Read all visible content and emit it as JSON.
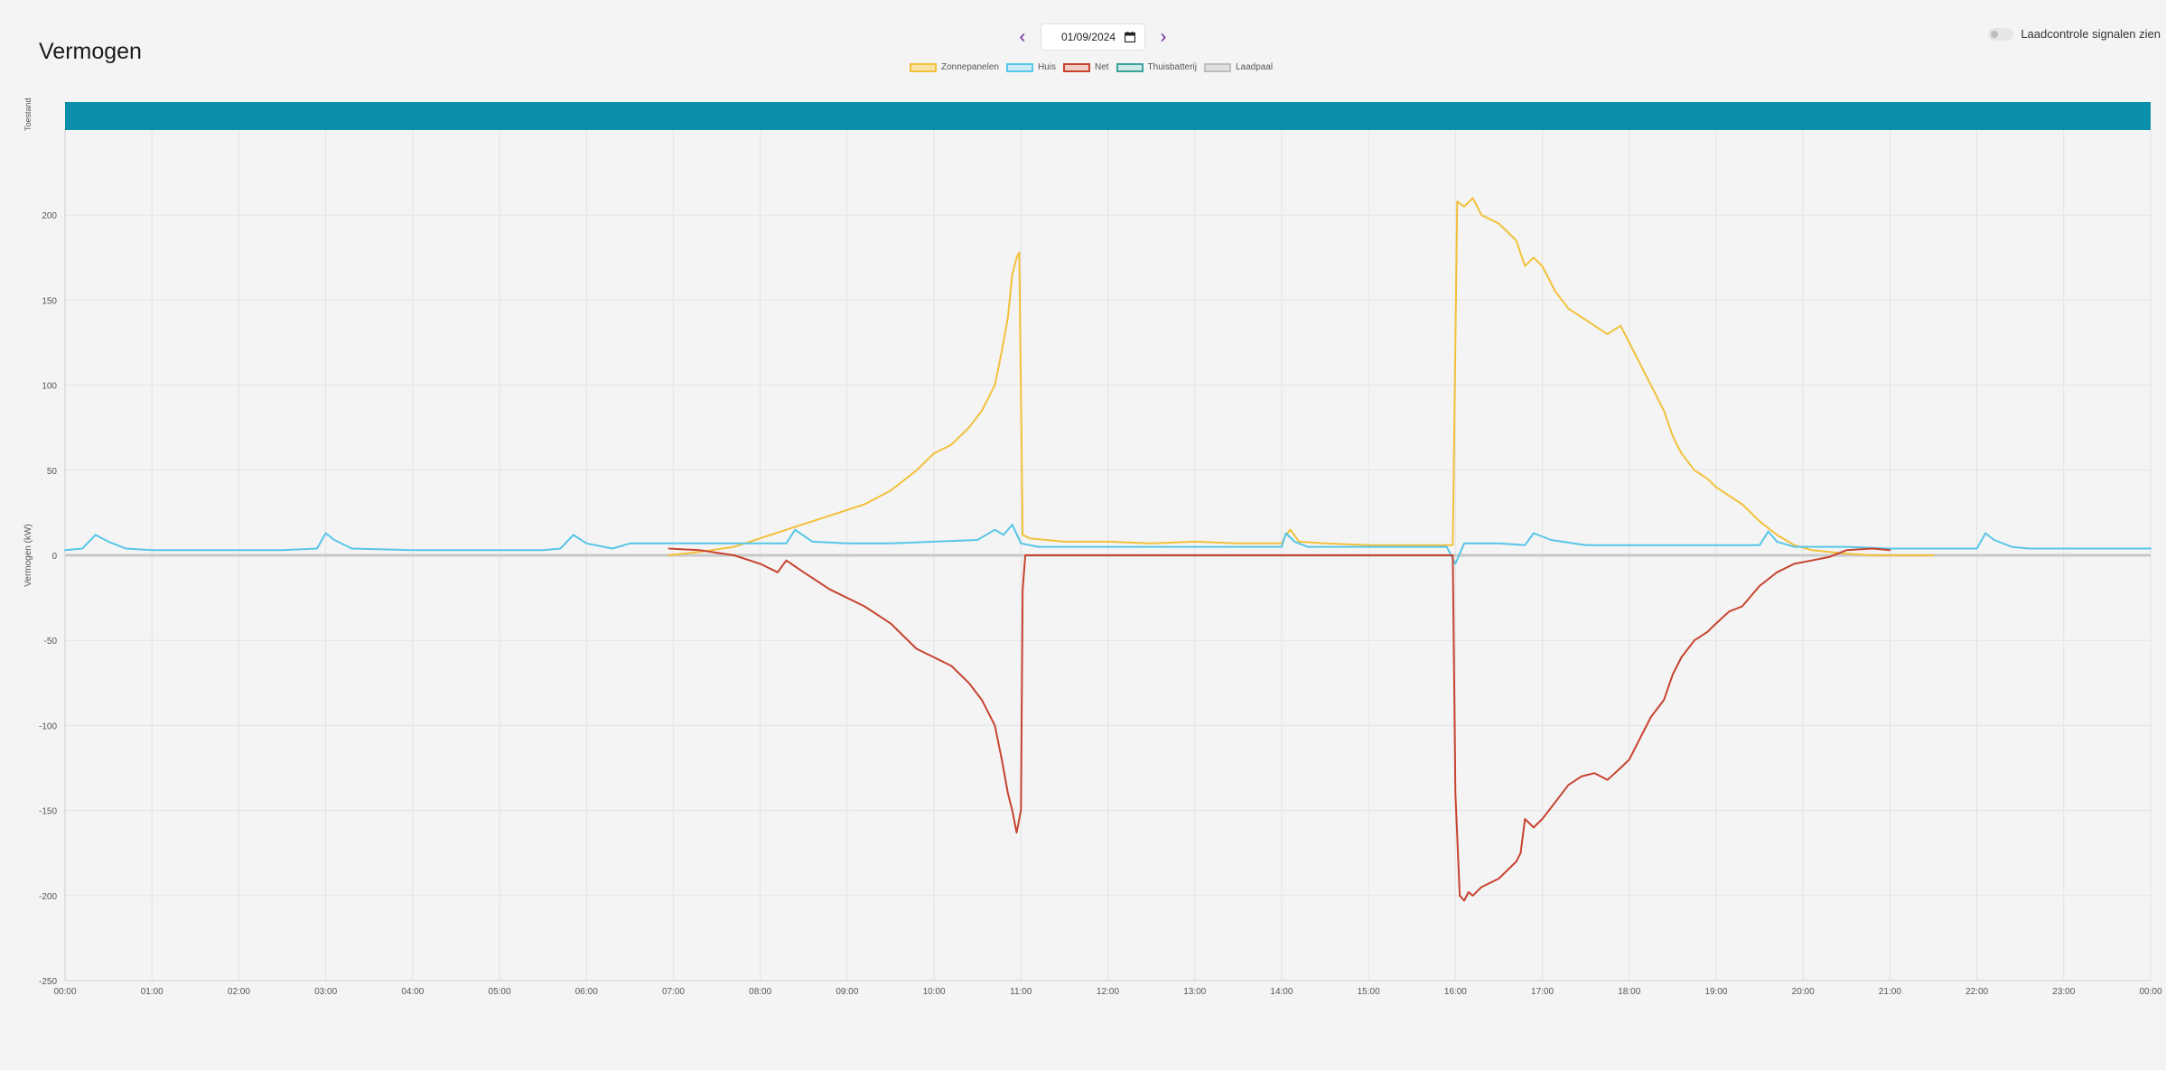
{
  "page": {
    "title": "Vermogen"
  },
  "date_nav": {
    "date": "01/09/2024",
    "prev_icon": "chevron-left-icon",
    "next_icon": "chevron-right-icon",
    "calendar_icon": "calendar-icon"
  },
  "toggle": {
    "label": "Laadcontrole signalen zien",
    "checked": false
  },
  "colors": {
    "solar": "#f2c13b",
    "solar_fill": "#f9e3a8",
    "house": "#57c6e8",
    "house_fill": "#cdebf6",
    "grid": "#c7432f",
    "grid_fill": "#f0cfc8",
    "battery": "#3aa49a",
    "battery_fill": "#cfe9e6",
    "charger": "#bdbdbd",
    "charger_fill": "#e0e0e0",
    "status_band": "#0a8fab",
    "zero_line": "#c8c8c8"
  },
  "chart_data": {
    "type": "line",
    "ylabel": "Vermogen (kW)",
    "status_label": "Toestand",
    "ylim": [
      -250,
      250
    ],
    "yticks": [
      "200",
      "150",
      "100",
      "50",
      "0",
      "-50",
      "-100",
      "-150",
      "-200",
      "-250"
    ],
    "xticks": [
      "00:00",
      "01:00",
      "02:00",
      "03:00",
      "04:00",
      "05:00",
      "06:00",
      "07:00",
      "08:00",
      "09:00",
      "10:00",
      "11:00",
      "12:00",
      "13:00",
      "14:00",
      "15:00",
      "16:00",
      "17:00",
      "18:00",
      "19:00",
      "20:00",
      "21:00",
      "22:00",
      "23:00",
      "00:00"
    ],
    "grid": true,
    "legend": "top-center",
    "series": [
      {
        "name": "Zonnepanelen",
        "x": [
          6.95,
          7.3,
          7.7,
          8.0,
          8.3,
          8.6,
          8.9,
          9.2,
          9.5,
          9.8,
          10.0,
          10.2,
          10.4,
          10.55,
          10.7,
          10.78,
          10.85,
          10.9,
          10.95,
          10.98,
          11.02,
          11.1,
          11.5,
          12.0,
          12.5,
          13.0,
          13.5,
          14.0,
          14.05,
          14.1,
          14.2,
          14.5,
          15.0,
          15.5,
          15.97,
          16.02,
          16.1,
          16.2,
          16.3,
          16.5,
          16.6,
          16.7,
          16.8,
          16.9,
          17.0,
          17.15,
          17.3,
          17.45,
          17.6,
          17.75,
          17.9,
          18.0,
          18.1,
          18.25,
          18.4,
          18.5,
          18.6,
          18.75,
          18.9,
          19.0,
          19.15,
          19.3,
          19.5,
          19.7,
          19.9,
          20.1,
          20.3,
          20.5,
          20.8,
          21.0,
          21.5
        ],
        "values": [
          0,
          2,
          5,
          10,
          15,
          20,
          25,
          30,
          38,
          50,
          60,
          65,
          75,
          85,
          100,
          120,
          140,
          165,
          175,
          178,
          12,
          10,
          8,
          8,
          7,
          8,
          7,
          7,
          12,
          15,
          8,
          7,
          6,
          6,
          6,
          208,
          205,
          210,
          200,
          195,
          190,
          185,
          170,
          175,
          170,
          155,
          145,
          140,
          135,
          130,
          135,
          125,
          115,
          100,
          85,
          70,
          60,
          50,
          45,
          40,
          35,
          30,
          20,
          12,
          6,
          3,
          2,
          1,
          0,
          0,
          0
        ]
      },
      {
        "name": "Huis",
        "x": [
          0.0,
          0.2,
          0.35,
          0.5,
          0.7,
          1.0,
          1.5,
          2.0,
          2.5,
          2.9,
          3.0,
          3.1,
          3.3,
          4.0,
          5.0,
          5.5,
          5.7,
          5.85,
          6.0,
          6.3,
          6.5,
          7.0,
          8.0,
          8.3,
          8.4,
          8.6,
          9.0,
          9.5,
          10.0,
          10.5,
          10.7,
          10.8,
          10.9,
          11.0,
          11.2,
          12.0,
          13.0,
          14.0,
          14.05,
          14.15,
          14.3,
          15.0,
          15.9,
          16.0,
          16.1,
          16.5,
          16.8,
          16.9,
          17.1,
          17.5,
          18.0,
          18.5,
          19.0,
          19.5,
          19.6,
          19.7,
          19.9,
          20.2,
          20.5,
          21.0,
          21.5,
          22.0,
          22.1,
          22.2,
          22.4,
          22.6,
          23.0,
          23.5,
          24.0
        ],
        "values": [
          3,
          4,
          12,
          8,
          4,
          3,
          3,
          3,
          3,
          4,
          13,
          9,
          4,
          3,
          3,
          3,
          4,
          12,
          7,
          4,
          7,
          7,
          7,
          7,
          15,
          8,
          7,
          7,
          8,
          9,
          15,
          12,
          18,
          7,
          5,
          5,
          5,
          5,
          13,
          8,
          5,
          5,
          5,
          -5,
          7,
          7,
          6,
          13,
          9,
          6,
          6,
          6,
          6,
          6,
          14,
          8,
          5,
          5,
          5,
          4,
          4,
          4,
          13,
          9,
          5,
          4,
          4,
          4,
          4
        ]
      },
      {
        "name": "Net",
        "x": [
          6.95,
          7.3,
          7.7,
          8.0,
          8.2,
          8.3,
          8.5,
          8.8,
          9.2,
          9.5,
          9.8,
          10.0,
          10.2,
          10.4,
          10.55,
          10.7,
          10.78,
          10.85,
          10.9,
          10.95,
          11.0,
          11.02,
          11.05,
          11.2,
          12.0,
          13.0,
          14.0,
          15.0,
          15.97,
          16.0,
          16.05,
          16.1,
          16.15,
          16.2,
          16.3,
          16.5,
          16.6,
          16.7,
          16.75,
          16.8,
          16.9,
          17.0,
          17.15,
          17.3,
          17.45,
          17.6,
          17.75,
          17.9,
          18.0,
          18.1,
          18.25,
          18.4,
          18.5,
          18.6,
          18.75,
          18.9,
          19.0,
          19.15,
          19.3,
          19.5,
          19.7,
          19.9,
          20.1,
          20.3,
          20.5,
          20.8,
          21.0
        ],
        "values": [
          4,
          3,
          0,
          -5,
          -10,
          -3,
          -10,
          -20,
          -30,
          -40,
          -55,
          -60,
          -65,
          -75,
          -85,
          -100,
          -120,
          -140,
          -150,
          -163,
          -150,
          -20,
          0,
          0,
          0,
          0,
          0,
          0,
          0,
          -140,
          -200,
          -203,
          -198,
          -200,
          -195,
          -190,
          -185,
          -180,
          -175,
          -155,
          -160,
          -155,
          -145,
          -135,
          -130,
          -128,
          -132,
          -125,
          -120,
          -110,
          -95,
          -85,
          -70,
          -60,
          -50,
          -45,
          -40,
          -33,
          -30,
          -18,
          -10,
          -5,
          -3,
          -1,
          3,
          4,
          3
        ]
      },
      {
        "name": "Thuisbatterij",
        "x": [],
        "values": []
      },
      {
        "name": "Laadpaal",
        "x": [],
        "values": []
      }
    ]
  }
}
